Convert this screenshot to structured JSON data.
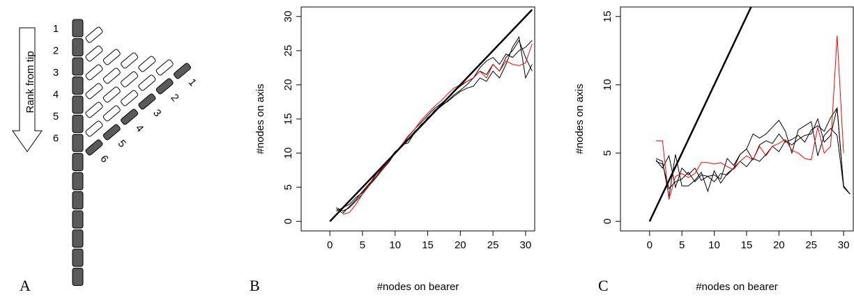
{
  "diagram": {
    "panel_label": "A",
    "arrow_label": "Rank from tip",
    "rank_labels": [
      "1",
      "2",
      "3",
      "4",
      "5",
      "6"
    ],
    "leaf_labels": [
      "1",
      "2",
      "3",
      "4",
      "5",
      "6"
    ]
  },
  "chart_data": [
    {
      "type": "line",
      "panel_label": "B",
      "xlabel": "#nodes on bearer",
      "ylabel": "#nodes on axis",
      "xlim": [
        -4.4,
        31.4
      ],
      "ylim": [
        -1.4,
        31.4
      ],
      "xticks": [
        0,
        5,
        10,
        15,
        20,
        25,
        30
      ],
      "yticks": [
        0,
        5,
        10,
        15,
        20,
        25,
        30
      ],
      "series": [
        {
          "color": "#000000",
          "x": [
            1,
            2,
            3,
            4,
            5,
            6,
            7,
            8,
            9,
            10,
            11,
            12,
            13,
            14,
            15,
            16,
            17,
            18,
            19,
            20,
            21,
            22,
            23,
            24,
            25,
            26,
            27,
            28,
            29,
            30,
            31
          ],
          "values": [
            2,
            1.5,
            2,
            3,
            4,
            5.2,
            6.3,
            7.5,
            8.6,
            10,
            11,
            12,
            13.2,
            14,
            15.2,
            16,
            16.8,
            17.6,
            18.5,
            19.2,
            20,
            21,
            22,
            21.5,
            23,
            22,
            24,
            25,
            26.5,
            24,
            22
          ]
        },
        {
          "color": "#000000",
          "x": [
            1,
            2,
            3,
            4,
            5,
            6,
            7,
            8,
            9,
            10,
            11,
            12,
            13,
            14,
            15,
            16,
            17,
            18,
            19,
            20,
            21,
            22,
            23,
            24,
            25,
            26,
            27,
            28,
            29,
            30,
            31
          ],
          "values": [
            1.8,
            1.2,
            2.2,
            3.2,
            4.4,
            5.5,
            6.5,
            7.8,
            8.8,
            10,
            11.2,
            11.5,
            13,
            14.2,
            15,
            16.2,
            17,
            17.5,
            18.3,
            19,
            19.5,
            19.8,
            21,
            20.5,
            22,
            21,
            23,
            25.5,
            27,
            21,
            23
          ]
        },
        {
          "color": "#000000",
          "x": [
            1,
            2,
            3,
            4,
            5,
            6,
            7,
            8,
            9,
            10,
            11,
            12,
            13,
            14,
            15,
            16,
            17,
            18,
            19,
            20,
            21,
            22,
            23,
            24,
            25,
            26,
            27,
            28,
            29,
            30,
            31
          ],
          "values": [
            1.5,
            2,
            2.5,
            3.5,
            4.2,
            5.3,
            6.8,
            8,
            9,
            10.2,
            11,
            12.4,
            13.5,
            14.5,
            15.5,
            16.5,
            17.2,
            18,
            19,
            19.8,
            20.5,
            21,
            22.5,
            23.5,
            24,
            23,
            24.5,
            24,
            25,
            25.5,
            26.5
          ]
        },
        {
          "color": "#ff0000",
          "x": [
            2,
            3,
            4,
            5,
            6,
            7,
            8,
            9,
            10,
            11,
            12,
            13,
            14,
            15,
            16,
            17,
            18,
            19,
            20,
            21,
            22,
            23,
            24,
            25,
            26,
            27,
            28,
            29,
            30,
            31
          ],
          "values": [
            1,
            1.3,
            2.5,
            4,
            5.2,
            6.5,
            7.6,
            8.8,
            10,
            11.2,
            12.5,
            13.5,
            14.8,
            15.8,
            16.8,
            17.6,
            18.6,
            19.5,
            20,
            20.5,
            21,
            22,
            21,
            23,
            22,
            23.5,
            23,
            22.8,
            23.2,
            26
          ]
        },
        {
          "color": "#000000",
          "line_width": 2.5,
          "x": [
            0,
            31
          ],
          "values": [
            0,
            31
          ]
        }
      ]
    },
    {
      "type": "line",
      "panel_label": "C",
      "xlabel": "#nodes on bearer",
      "ylabel": "#nodes on axis",
      "xlim": [
        -4.5,
        31.5
      ],
      "ylim": [
        -0.7,
        15.7
      ],
      "xticks": [
        0,
        5,
        10,
        15,
        20,
        25,
        30
      ],
      "yticks": [
        0,
        5,
        10,
        15
      ],
      "series": [
        {
          "color": "#000000",
          "x": [
            1,
            2,
            3,
            4,
            5,
            6,
            7,
            8,
            9,
            10,
            11,
            12,
            13,
            14,
            15,
            16,
            17,
            18,
            19,
            20,
            21,
            22,
            23,
            24,
            25,
            26,
            27,
            28,
            29,
            30,
            31
          ],
          "values": [
            4.6,
            4.4,
            1.8,
            4.9,
            2.6,
            2.6,
            3.0,
            3.6,
            2.2,
            3.7,
            2.8,
            3.5,
            3.9,
            4.9,
            5.3,
            6.4,
            6.1,
            6.4,
            6.9,
            7.4,
            6.6,
            5.0,
            6.7,
            7.0,
            7.3,
            4.8,
            6.3,
            6.8,
            6.3,
            2.5,
            2.0
          ]
        },
        {
          "color": "#000000",
          "x": [
            1,
            2,
            3,
            4,
            5,
            6,
            7,
            8,
            9,
            10,
            11,
            12,
            13,
            14,
            15,
            16,
            17,
            18,
            19,
            20,
            21,
            22,
            23,
            24,
            25,
            26,
            27,
            28,
            29,
            30,
            31
          ],
          "values": [
            4.5,
            3.9,
            4.8,
            2.5,
            3.9,
            3.4,
            3.9,
            3.0,
            3.3,
            3.4,
            3.1,
            4.6,
            4.1,
            4.9,
            5.3,
            4.5,
            5.6,
            5.9,
            5.7,
            6.4,
            5.8,
            6.0,
            6.3,
            5.8,
            6.7,
            7.0,
            6.6,
            7.6,
            8.3,
            2.6,
            2.0
          ]
        },
        {
          "color": "#000000",
          "x": [
            1,
            2,
            3,
            4,
            5,
            6,
            7,
            8,
            9,
            10,
            11,
            12,
            13,
            14,
            15,
            16,
            17,
            18,
            19,
            20,
            21,
            22,
            23,
            24,
            25,
            26,
            27,
            28,
            29,
            30,
            31
          ],
          "values": [
            4.4,
            4.2,
            2.4,
            2.9,
            3.1,
            3.6,
            2.9,
            3.4,
            3.3,
            2.9,
            3.5,
            3.4,
            3.9,
            4.4,
            4.0,
            4.6,
            4.4,
            4.9,
            5.5,
            5.1,
            5.9,
            5.6,
            6.0,
            6.3,
            6.4,
            7.5,
            5.8,
            6.3,
            8.3,
            2.5,
            2.0
          ]
        },
        {
          "color": "#ff0000",
          "x": [
            1,
            2,
            3,
            4,
            5,
            6,
            7,
            8,
            9,
            10,
            11,
            12,
            13,
            14,
            15,
            16,
            17,
            18,
            19,
            20,
            21,
            22,
            23,
            24,
            25,
            26,
            27,
            28,
            29,
            30
          ],
          "values": [
            5.9,
            5.9,
            1.6,
            3.3,
            3.5,
            3.2,
            3.5,
            4.3,
            4.3,
            4.2,
            4.3,
            4.0,
            3.8,
            4.4,
            4.8,
            4.5,
            5.5,
            4.8,
            5.5,
            5.7,
            6.0,
            5.2,
            5.0,
            4.6,
            4.5,
            6.9,
            5.0,
            5.5,
            13.6,
            5.0
          ]
        },
        {
          "color": "#000000",
          "line_width": 2.5,
          "x": [
            0,
            15.7
          ],
          "values": [
            0,
            15.7
          ]
        }
      ]
    }
  ]
}
